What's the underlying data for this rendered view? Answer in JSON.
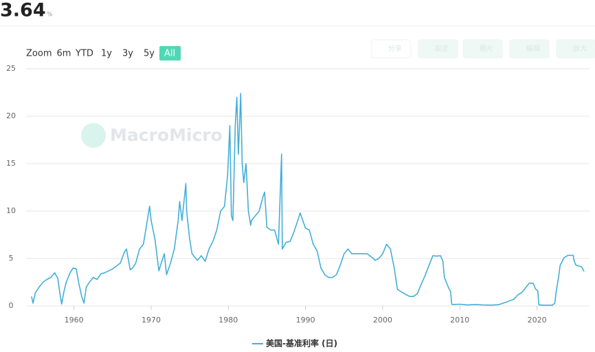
{
  "header": {
    "value": "3.64",
    "unit": "%"
  },
  "range_buttons": {
    "label": "Zoom",
    "items": [
      "6m",
      "YTD",
      "1y",
      "3y",
      "5y",
      "All"
    ],
    "active": 5
  },
  "tool_buttons": [
    "分享",
    "設定",
    "圖片",
    "編輯",
    "放大"
  ],
  "chart_data": {
    "type": "line",
    "watermark": "MacroMicro",
    "x": [
      1954.5,
      1954.7,
      1955,
      1955.5,
      1956,
      1956.5,
      1957,
      1957.5,
      1957.9,
      1958.2,
      1958.4,
      1958.7,
      1959,
      1959.5,
      1959.9,
      1960.3,
      1960.6,
      1961,
      1961.3,
      1961.6,
      1962,
      1962.5,
      1963,
      1963.5,
      1964,
      1965,
      1966,
      1966.5,
      1966.8,
      1967.3,
      1967.6,
      1968,
      1968.5,
      1969,
      1969.5,
      1969.8,
      1970,
      1970.5,
      1971,
      1971.3,
      1971.7,
      1972,
      1972.5,
      1973,
      1973.5,
      1973.7,
      1974,
      1974.5,
      1974.6,
      1975,
      1975.3,
      1976,
      1976.5,
      1977,
      1977.5,
      1978,
      1978.5,
      1979,
      1979.5,
      1979.9,
      1980.2,
      1980.4,
      1980.6,
      1980.9,
      1981.1,
      1981.3,
      1981.5,
      1981.6,
      1981.8,
      1982,
      1982.3,
      1982.6,
      1982.9,
      1983,
      1983.5,
      1984,
      1984.5,
      1984.7,
      1985,
      1985.5,
      1986,
      1986.5,
      1986.9,
      1987,
      1987.5,
      1988,
      1988.5,
      1989,
      1989.3,
      1990,
      1990.5,
      1991,
      1991.5,
      1992,
      1992.5,
      1993,
      1993.5,
      1994,
      1994.5,
      1995,
      1995.5,
      1996,
      1997,
      1998,
      1998.8,
      1999,
      1999.5,
      2000,
      2000.5,
      2001,
      2001.5,
      2001.9,
      2002,
      2003,
      2003.5,
      2004,
      2004.5,
      2005,
      2005.5,
      2006,
      2006.5,
      2007,
      2007.5,
      2007.8,
      2008,
      2008.5,
      2008.8,
      2008.95,
      2009,
      2010,
      2011,
      2012,
      2013,
      2014,
      2015,
      2016,
      2017,
      2017.5,
      2018,
      2018.5,
      2019,
      2019.5,
      2019.8,
      2020.1,
      2020.25,
      2021,
      2022,
      2022.3,
      2022.5,
      2022.8,
      2023,
      2023.5,
      2024,
      2024.7,
      2024.8,
      2025,
      2025.8,
      2026.1
    ],
    "series": [
      {
        "name": "美国-基准利率 (日)",
        "color": "#43aed8",
        "values": [
          1.0,
          0.3,
          1.4,
          2.0,
          2.5,
          2.8,
          3.0,
          3.5,
          2.9,
          1.2,
          0.2,
          1.5,
          2.5,
          3.5,
          4.0,
          3.9,
          2.5,
          1.0,
          0.3,
          2.0,
          2.5,
          3.0,
          2.8,
          3.4,
          3.5,
          3.9,
          4.5,
          5.6,
          6.0,
          3.8,
          4.0,
          4.5,
          6.0,
          6.5,
          9.0,
          10.5,
          9.0,
          7.0,
          3.7,
          4.5,
          5.5,
          3.3,
          4.5,
          6.0,
          9.0,
          11.0,
          9.0,
          12.9,
          10.0,
          7.0,
          5.5,
          4.8,
          5.3,
          4.7,
          6.0,
          6.8,
          8.0,
          10.0,
          10.5,
          13.7,
          19.0,
          9.5,
          9.0,
          19.0,
          22.0,
          16.0,
          20.0,
          22.4,
          15.0,
          13.0,
          15.0,
          10.0,
          8.5,
          9.0,
          9.5,
          10.0,
          11.5,
          12.0,
          8.3,
          8.0,
          8.0,
          6.5,
          16.0,
          6.0,
          6.7,
          6.8,
          7.8,
          9.0,
          9.8,
          8.2,
          8.0,
          6.5,
          5.8,
          4.0,
          3.3,
          3.0,
          3.0,
          3.3,
          4.3,
          5.5,
          6.0,
          5.5,
          5.5,
          5.5,
          5.0,
          4.8,
          5.0,
          5.5,
          6.5,
          6.0,
          4.0,
          1.8,
          1.7,
          1.2,
          1.0,
          1.0,
          1.3,
          2.3,
          3.2,
          4.3,
          5.3,
          5.25,
          5.3,
          4.7,
          3.0,
          2.0,
          1.5,
          0.2,
          0.15,
          0.18,
          0.1,
          0.15,
          0.1,
          0.09,
          0.13,
          0.4,
          0.7,
          1.15,
          1.4,
          1.9,
          2.4,
          2.4,
          1.8,
          1.6,
          0.1,
          0.08,
          0.08,
          0.3,
          1.6,
          3.1,
          4.3,
          5.08,
          5.33,
          5.33,
          4.8,
          4.33,
          4.1,
          3.64
        ]
      }
    ],
    "xlim": [
      1953.8,
      2026.8
    ],
    "ylim": [
      0,
      25
    ],
    "xticks": [
      1960,
      1970,
      1980,
      1990,
      2000,
      2010,
      2020
    ],
    "yticks": [
      0,
      5,
      10,
      15,
      20,
      25
    ],
    "grid": true
  }
}
